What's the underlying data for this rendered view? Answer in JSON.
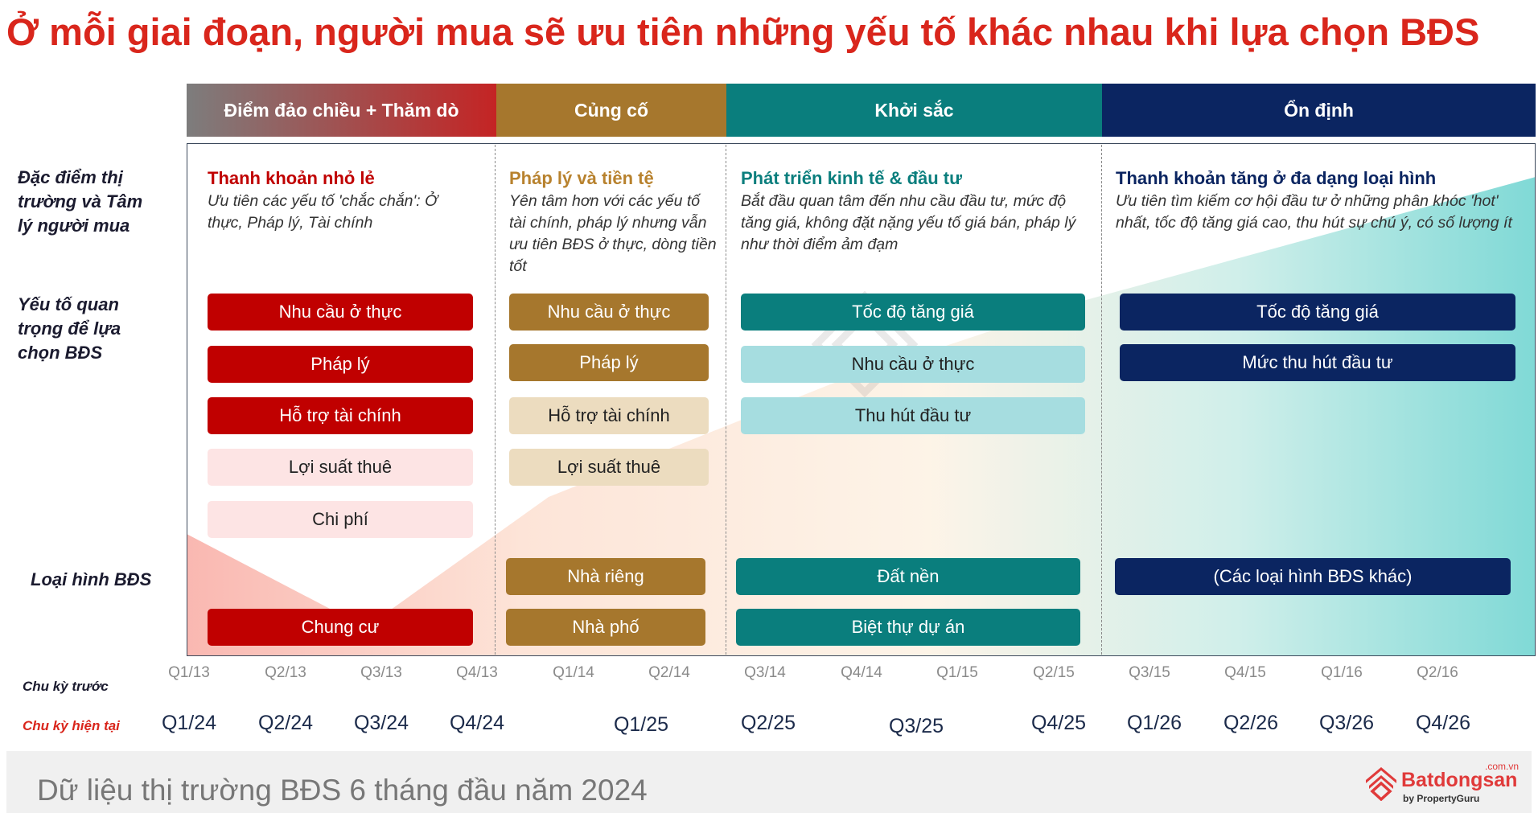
{
  "title": "Ở mỗi giai đoạn, người mua sẽ ưu tiên những yếu tố khác nhau khi lựa chọn BĐS",
  "phases": [
    {
      "label": "Điểm đảo chiều + Thăm dò"
    },
    {
      "label": "Củng cố"
    },
    {
      "label": "Khởi sắc"
    },
    {
      "label": "Ổn định"
    }
  ],
  "row_labels": {
    "market": "Đặc điểm thị trường và Tâm lý người mua",
    "factors": "Yếu tố quan trọng để lựa chọn BĐS",
    "property_type": "Loại hình BĐS"
  },
  "stages": [
    {
      "heading": "Thanh khoản nhỏ lẻ",
      "heading_color": "#c00000",
      "description": "Ưu tiên các yếu tố 'chắc chắn': Ở thực, Pháp lý, Tài chính",
      "factors": [
        "Nhu cầu ở thực",
        "Pháp lý",
        "Hỗ trợ tài chính",
        "Lợi suất thuê",
        "Chi phí"
      ],
      "types": [
        "Chung cư"
      ]
    },
    {
      "heading": "Pháp lý và tiền tệ",
      "heading_color": "#b8822e",
      "description": "Yên tâm hơn với các yếu tố tài chính, pháp lý nhưng vẫn ưu tiên BĐS ở thực, dòng tiền tốt",
      "factors": [
        "Nhu cầu ở thực",
        "Pháp lý",
        "Hỗ trợ tài chính",
        "Lợi suất thuê"
      ],
      "types": [
        "Nhà riêng",
        "Nhà phố"
      ]
    },
    {
      "heading": "Phát triển kinh tế & đầu tư",
      "heading_color": "#0a7e7d",
      "description": "Bắt đầu quan tâm đến nhu cầu đầu tư, mức độ tăng giá, không đặt nặng yếu tố giá bán, pháp lý như thời điểm ảm đạm",
      "factors": [
        "Tốc độ tăng giá",
        "Nhu cầu ở thực",
        "Thu hút đầu tư"
      ],
      "types": [
        "Đất nền",
        "Biệt thự dự án"
      ]
    },
    {
      "heading": "Thanh khoản tăng ở đa dạng loại hình",
      "heading_color": "#0b2561",
      "description": "Ưu tiên tìm kiếm cơ hội đầu tư ở những phân khóc 'hot' nhất, tốc độ tăng giá cao, thu hút sự chú ý, có số lượng ít",
      "factors": [
        "Tốc độ tăng giá",
        "Mức thu hút đầu tư"
      ],
      "types": [
        "(Các loại hình BĐS khác)"
      ]
    }
  ],
  "timeline": {
    "prev_label": "Chu kỳ trước",
    "curr_label": "Chu kỳ hiện tại",
    "prev": [
      "Q1/13",
      "Q2/13",
      "Q3/13",
      "Q4/13",
      "Q1/14",
      "Q2/14",
      "Q3/14",
      "Q4/14",
      "Q1/15",
      "Q2/15",
      "Q3/15",
      "Q4/15",
      "Q1/16",
      "Q2/16"
    ],
    "curr": [
      "Q1/24",
      "Q2/24",
      "Q3/24",
      "Q4/24",
      "Q1/25",
      "Q2/25",
      "Q3/25",
      "Q4/25",
      "Q1/26",
      "Q2/26",
      "Q3/26",
      "Q4/26"
    ]
  },
  "footer": {
    "text": "Dữ liệu thị trường BĐS 6 tháng đầu năm 2024",
    "logo_name": "Batdongsan",
    "logo_domain": ".com.vn",
    "logo_sub": "by PropertyGuru"
  },
  "colors": {
    "title": "#d9261c",
    "red": "#c00000",
    "gold": "#a6772d",
    "teal": "#0a7e7d",
    "navy": "#0b2561"
  }
}
